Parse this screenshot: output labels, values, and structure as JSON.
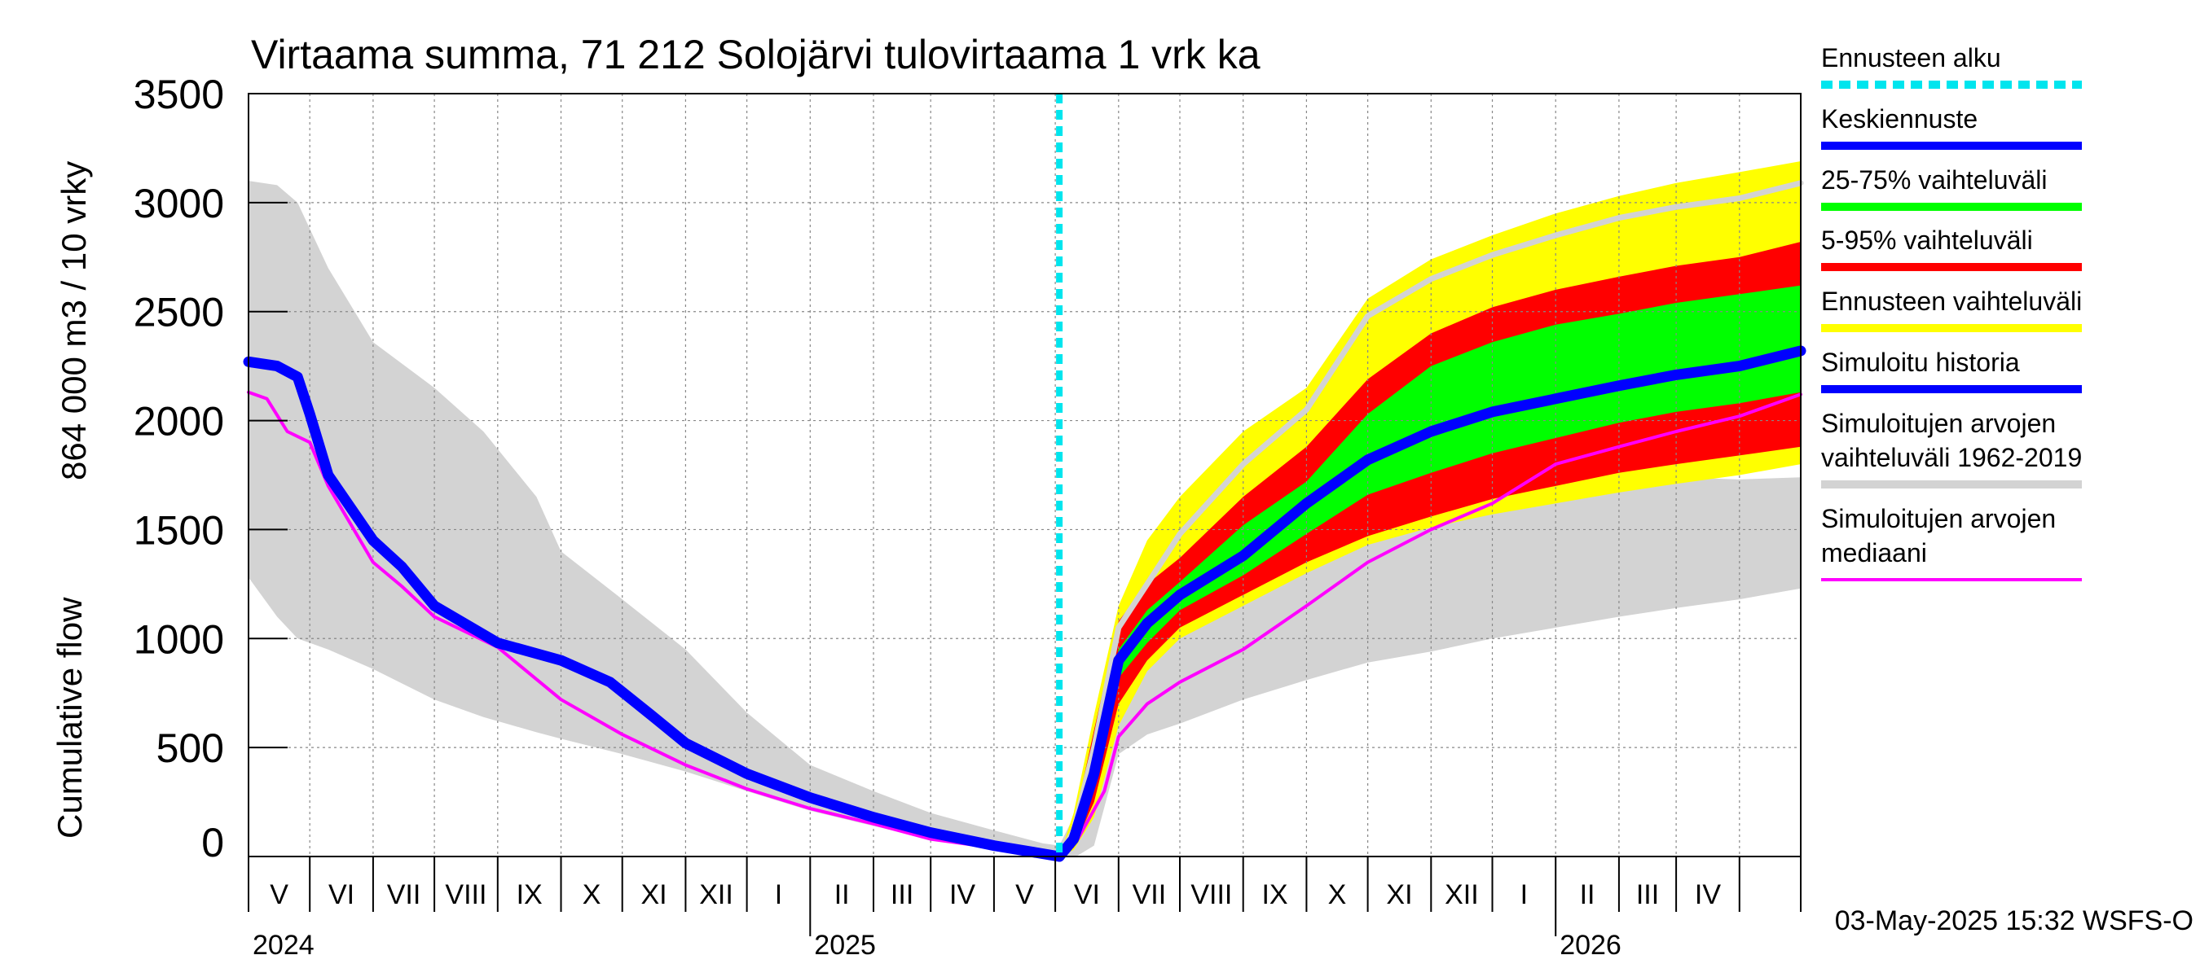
{
  "chart_data": {
    "type": "area",
    "title": "Virtaama summa, 71 212 Solojärvi tulovirtaama 1 vrk ka",
    "ylabel_fi": "864 000 m3 / 10 vrky",
    "ylabel_en": "Cumulative flow",
    "ylim": [
      0,
      3500
    ],
    "yticks": [
      "0",
      "500",
      "1000",
      "1500",
      "2000",
      "2500",
      "3000",
      "3500"
    ],
    "x_start": "2024-04-01",
    "x_end": "2026-05-01",
    "forecast_start": "2025-05-03",
    "month_labels": [
      "V",
      "VI",
      "VII",
      "VIII",
      "IX",
      "X",
      "XI",
      "XII",
      "I",
      "II",
      "III",
      "IV",
      "V",
      "VI",
      "VII",
      "VIII",
      "IX",
      "X",
      "XI",
      "XII",
      "I",
      "II",
      "III",
      "IV"
    ],
    "year_labels": [
      "2024",
      "2025",
      "2026"
    ],
    "grid": true,
    "legend_position": "right",
    "legend": [
      {
        "label": "Ennusteen alku",
        "color": "#00e5ee",
        "style": "dashed"
      },
      {
        "label": "Keskiennuste",
        "color": "#0000ff",
        "style": "solid"
      },
      {
        "label": "25-75% vaihteluväli",
        "color": "#00ff00",
        "style": "solid"
      },
      {
        "label": "5-95% vaihteluväli",
        "color": "#ff0000",
        "style": "solid"
      },
      {
        "label": "Ennusteen vaihteluväli",
        "color": "#ffff00",
        "style": "solid"
      },
      {
        "label": "Simuloitu historia",
        "color": "#0000ff",
        "style": "solid"
      },
      {
        "label": "Simuloitujen arvojen vaihteluväli 1962-2019",
        "color": "#d3d3d3",
        "style": "solid"
      },
      {
        "label": "Simuloitujen arvojen mediaani",
        "color": "#ff00ff",
        "style": "solid"
      }
    ],
    "series": [
      {
        "name": "Simuloitujen arvojen vaihteluväli 1962-2019",
        "kind": "band",
        "color": "#d3d3d3",
        "x": [
          "2024-04-01",
          "2024-04-15",
          "2024-04-25",
          "2024-05-10",
          "2024-06-01",
          "2024-07-01",
          "2024-07-25",
          "2024-08-20",
          "2024-09-01",
          "2024-10-01",
          "2024-11-01",
          "2024-12-01",
          "2025-01-01",
          "2025-02-01",
          "2025-03-01",
          "2025-04-01",
          "2025-04-25",
          "2025-05-03",
          "2025-05-12",
          "2025-05-20",
          "2025-06-01",
          "2025-06-15",
          "2025-07-01",
          "2025-08-01",
          "2025-09-01",
          "2025-10-01",
          "2025-11-01",
          "2025-12-01",
          "2026-01-01",
          "2026-02-01",
          "2026-03-01",
          "2026-04-01",
          "2026-05-01"
        ],
        "low": [
          1280,
          1100,
          1000,
          950,
          860,
          720,
          640,
          570,
          540,
          470,
          390,
          300,
          210,
          140,
          80,
          35,
          10,
          0,
          5,
          50,
          470,
          560,
          610,
          720,
          810,
          890,
          940,
          1000,
          1050,
          1100,
          1140,
          1180,
          1230
        ],
        "high": [
          3100,
          3080,
          3000,
          2700,
          2360,
          2150,
          1950,
          1650,
          1400,
          1180,
          950,
          660,
          420,
          300,
          200,
          120,
          60,
          50,
          220,
          500,
          1000,
          1300,
          1600,
          1800,
          1920,
          2000,
          1980,
          1950,
          1850,
          1780,
          1740,
          1730,
          1740
        ]
      },
      {
        "name": "Ennusteen vaihteluväli",
        "kind": "band",
        "color": "#ffff00",
        "x": [
          "2025-05-03",
          "2025-05-10",
          "2025-05-20",
          "2025-06-01",
          "2025-06-15",
          "2025-07-01",
          "2025-08-01",
          "2025-09-01",
          "2025-10-01",
          "2025-11-01",
          "2025-12-01",
          "2026-01-01",
          "2026-02-01",
          "2026-03-01",
          "2026-04-01",
          "2026-05-01"
        ],
        "low": [
          0,
          30,
          180,
          600,
          850,
          1000,
          1150,
          1300,
          1430,
          1510,
          1570,
          1620,
          1670,
          1710,
          1750,
          1800
        ],
        "high": [
          0,
          200,
          650,
          1150,
          1450,
          1650,
          1950,
          2150,
          2560,
          2740,
          2850,
          2950,
          3030,
          3090,
          3140,
          3190
        ]
      },
      {
        "name": "5-95% vaihteluväli",
        "kind": "band",
        "color": "#ff0000",
        "x": [
          "2025-05-03",
          "2025-05-10",
          "2025-05-20",
          "2025-06-01",
          "2025-06-15",
          "2025-07-01",
          "2025-08-01",
          "2025-09-01",
          "2025-10-01",
          "2025-11-01",
          "2025-12-01",
          "2026-01-01",
          "2026-02-01",
          "2026-03-01",
          "2026-04-01",
          "2026-05-01"
        ],
        "low": [
          0,
          40,
          250,
          700,
          900,
          1050,
          1200,
          1350,
          1470,
          1560,
          1640,
          1700,
          1760,
          1800,
          1840,
          1880
        ],
        "high": [
          0,
          150,
          580,
          1080,
          1250,
          1370,
          1650,
          1880,
          2190,
          2400,
          2520,
          2600,
          2660,
          2710,
          2750,
          2820
        ]
      },
      {
        "name": "25-75% vaihteluväli",
        "kind": "band",
        "color": "#00ff00",
        "x": [
          "2025-05-03",
          "2025-05-10",
          "2025-05-20",
          "2025-06-01",
          "2025-06-15",
          "2025-07-01",
          "2025-08-01",
          "2025-09-01",
          "2025-10-01",
          "2025-11-01",
          "2025-12-01",
          "2026-01-01",
          "2026-02-01",
          "2026-03-01",
          "2026-04-01",
          "2026-05-01"
        ],
        "low": [
          0,
          50,
          300,
          820,
          980,
          1130,
          1290,
          1480,
          1660,
          1760,
          1850,
          1920,
          1990,
          2040,
          2080,
          2130
        ],
        "high": [
          0,
          100,
          450,
          950,
          1130,
          1260,
          1520,
          1720,
          2030,
          2250,
          2360,
          2440,
          2490,
          2540,
          2580,
          2620
        ]
      },
      {
        "name": "Simuloitujen arvojen mediaani (ylempi)",
        "kind": "line",
        "color": "#d3d3d3",
        "x": [
          "2025-05-03",
          "2025-05-10",
          "2025-05-20",
          "2025-06-01",
          "2025-06-15",
          "2025-07-01",
          "2025-08-01",
          "2025-09-01",
          "2025-10-01",
          "2025-11-01",
          "2025-12-01",
          "2026-01-01",
          "2026-02-01",
          "2026-03-01",
          "2026-04-01",
          "2026-05-01"
        ],
        "y": [
          0,
          120,
          500,
          1050,
          1250,
          1480,
          1800,
          2050,
          2480,
          2650,
          2760,
          2850,
          2930,
          2980,
          3020,
          3090
        ]
      },
      {
        "name": "Simuloitujen arvojen mediaani",
        "kind": "line",
        "color": "#ff00ff",
        "x": [
          "2024-04-01",
          "2024-04-10",
          "2024-04-20",
          "2024-05-01",
          "2024-05-10",
          "2024-06-01",
          "2024-06-15",
          "2024-07-01",
          "2024-08-01",
          "2024-09-01",
          "2024-10-01",
          "2024-11-01",
          "2024-12-01",
          "2025-01-01",
          "2025-02-01",
          "2025-03-01",
          "2025-04-01",
          "2025-05-03",
          "2025-05-12",
          "2025-05-25",
          "2025-06-01",
          "2025-06-15",
          "2025-07-01",
          "2025-08-01",
          "2025-09-01",
          "2025-10-01",
          "2025-11-01",
          "2025-12-01",
          "2026-01-01",
          "2026-02-01",
          "2026-03-01",
          "2026-04-01",
          "2026-05-01"
        ],
        "y": [
          2130,
          2100,
          1950,
          1900,
          1700,
          1350,
          1240,
          1100,
          960,
          720,
          560,
          420,
          310,
          220,
          150,
          80,
          40,
          0,
          80,
          300,
          550,
          700,
          800,
          950,
          1150,
          1350,
          1500,
          1620,
          1800,
          1880,
          1950,
          2020,
          2120
        ]
      },
      {
        "name": "Simuloitu historia",
        "kind": "line",
        "color": "#0000ff",
        "x": [
          "2024-04-01",
          "2024-04-15",
          "2024-04-25",
          "2024-05-01",
          "2024-05-10",
          "2024-06-01",
          "2024-06-15",
          "2024-07-01",
          "2024-08-01",
          "2024-09-01",
          "2024-09-25",
          "2024-10-15",
          "2024-11-01",
          "2024-12-01",
          "2025-01-01",
          "2025-02-01",
          "2025-03-01",
          "2025-04-01",
          "2025-05-03"
        ],
        "y": [
          2270,
          2250,
          2200,
          2030,
          1750,
          1450,
          1330,
          1150,
          980,
          900,
          800,
          650,
          520,
          380,
          270,
          180,
          110,
          50,
          0
        ]
      },
      {
        "name": "Keskiennuste",
        "kind": "line",
        "color": "#0000ff",
        "x": [
          "2025-05-03",
          "2025-05-10",
          "2025-05-20",
          "2025-06-01",
          "2025-06-15",
          "2025-07-01",
          "2025-08-01",
          "2025-09-01",
          "2025-10-01",
          "2025-11-01",
          "2025-12-01",
          "2026-01-01",
          "2026-02-01",
          "2026-03-01",
          "2026-04-01",
          "2026-05-01"
        ],
        "y": [
          0,
          80,
          380,
          900,
          1070,
          1200,
          1380,
          1620,
          1820,
          1950,
          2040,
          2100,
          2160,
          2210,
          2250,
          2320
        ]
      }
    ]
  },
  "footer": {
    "timestamp": "03-May-2025 15:32 WSFS-O"
  }
}
